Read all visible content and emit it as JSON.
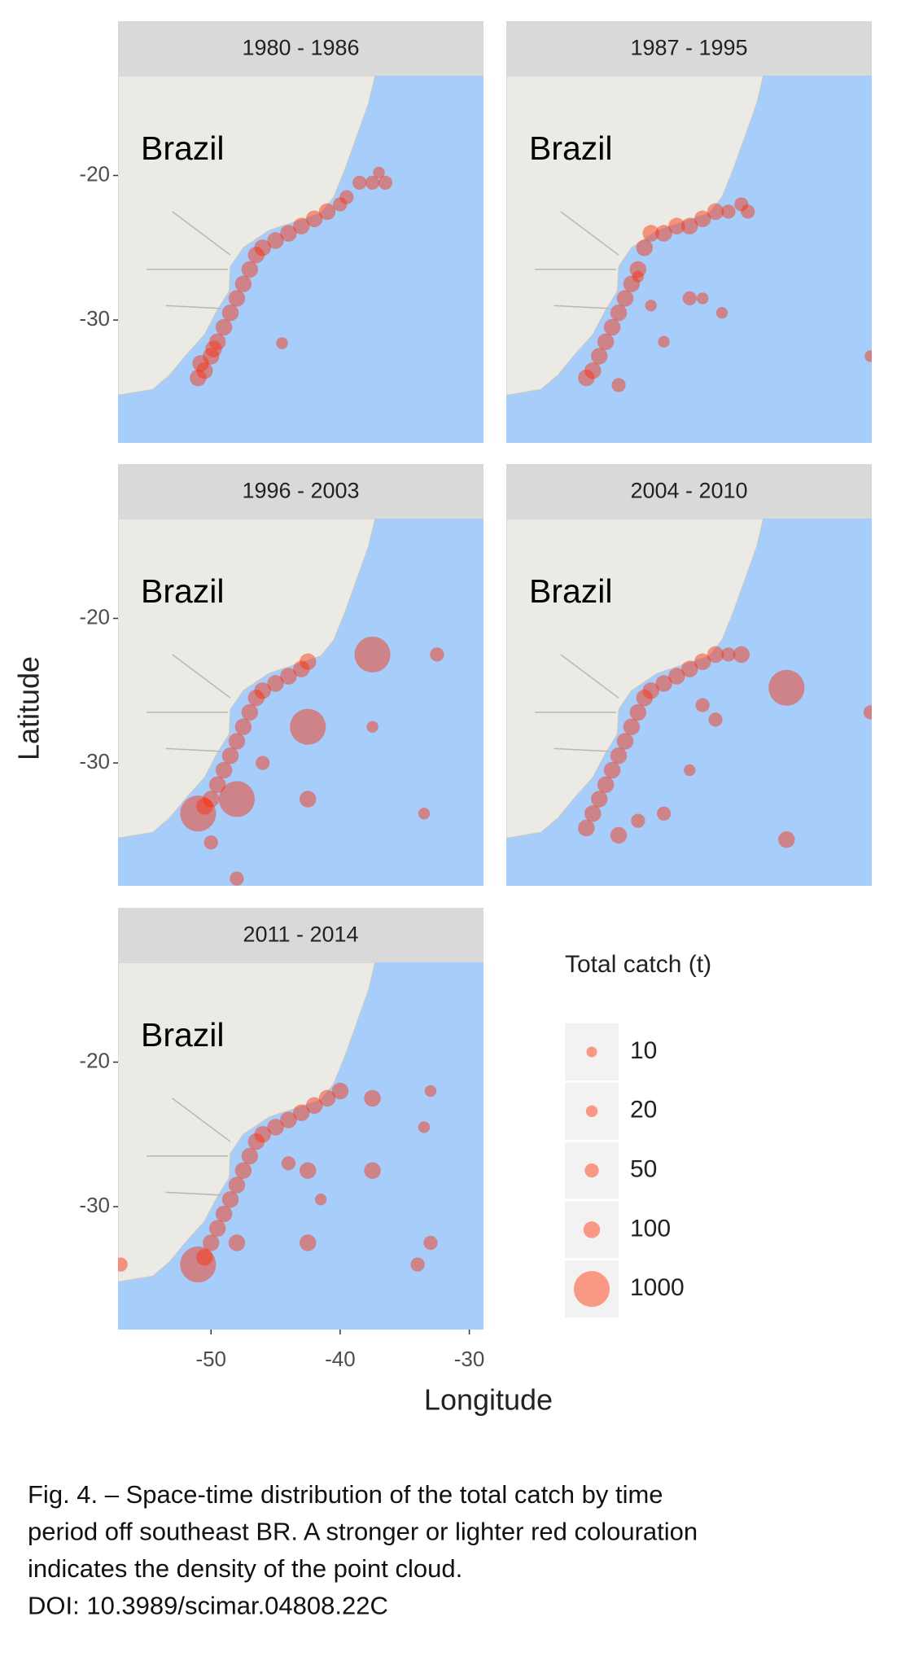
{
  "figure": {
    "xlabel": "Longitude",
    "ylabel": "Latitude",
    "xlim": [
      -57.2,
      -28.9
    ],
    "ylim": [
      -38.5,
      -13.1
    ],
    "xticks": [
      -50,
      -40,
      -30
    ],
    "yticks": [
      -20,
      -30
    ],
    "color": "#ff2a00",
    "legend": {
      "title": "Total catch (t)",
      "values": [
        10,
        20,
        50,
        100,
        1000
      ]
    }
  },
  "chart_data": [
    {
      "type": "scatter",
      "title": "1980 - 1986",
      "annotation": "Brazil",
      "x": [
        -51,
        -50.5,
        -50,
        -49.5,
        -49,
        -48.5,
        -48,
        -47.5,
        -47,
        -46.5,
        -46,
        -45,
        -44,
        -43,
        -42,
        -41,
        -40,
        -39.5,
        -38.5,
        -37.5,
        -37,
        -36.5,
        -44.5,
        -50.8,
        -49.8
      ],
      "y": [
        -34,
        -33.5,
        -32.5,
        -31.5,
        -30.5,
        -29.5,
        -28.5,
        -27.5,
        -26.5,
        -25.5,
        -25,
        -24.5,
        -24,
        -23.5,
        -23,
        -22.5,
        -22,
        -21.5,
        -20.5,
        -20.5,
        -19.8,
        -20.5,
        -31.6,
        -33,
        -32
      ],
      "sizes": [
        100,
        100,
        100,
        100,
        100,
        100,
        100,
        100,
        100,
        100,
        100,
        100,
        100,
        100,
        100,
        100,
        50,
        50,
        50,
        50,
        20,
        50,
        20,
        100,
        100
      ]
    },
    {
      "type": "scatter",
      "title": "1987 - 1995",
      "annotation": "Brazil",
      "x": [
        -51,
        -50.5,
        -50,
        -49.5,
        -49,
        -48.5,
        -48,
        -47.5,
        -47,
        -46.5,
        -46,
        -45,
        -44,
        -43,
        -42,
        -41,
        -40,
        -39,
        -38.5,
        -43,
        -42,
        -40.5,
        -29,
        -45,
        -47,
        -46,
        -48.5
      ],
      "y": [
        -34,
        -33.5,
        -32.5,
        -31.5,
        -30.5,
        -29.5,
        -28.5,
        -27.5,
        -26.5,
        -25,
        -24,
        -24,
        -23.5,
        -23.5,
        -23,
        -22.5,
        -22.5,
        -22,
        -22.5,
        -28.5,
        -28.5,
        -29.5,
        -32.5,
        -31.5,
        -27,
        -29,
        -34.5
      ],
      "sizes": [
        100,
        100,
        100,
        100,
        100,
        100,
        100,
        100,
        100,
        100,
        100,
        100,
        100,
        100,
        100,
        100,
        50,
        50,
        50,
        50,
        20,
        20,
        20,
        20,
        20,
        20,
        50
      ]
    },
    {
      "type": "scatter",
      "title": "1996 - 2003",
      "annotation": "Brazil",
      "x": [
        -51,
        -50.5,
        -50,
        -49.5,
        -49,
        -48.5,
        -48,
        -47.5,
        -47,
        -46.5,
        -46,
        -45,
        -44,
        -43,
        -42.5,
        -37.5,
        -42.5,
        -48,
        -42.5,
        -37.5,
        -33.5,
        -32.5,
        -50,
        -48,
        -46
      ],
      "y": [
        -33.5,
        -33,
        -32.5,
        -31.5,
        -30.5,
        -29.5,
        -28.5,
        -27.5,
        -26.5,
        -25.5,
        -25,
        -24.5,
        -24,
        -23.5,
        -23,
        -22.5,
        -27.5,
        -32.5,
        -32.5,
        -27.5,
        -33.5,
        -22.5,
        -35.5,
        -38,
        -30
      ],
      "sizes": [
        1000,
        100,
        100,
        100,
        100,
        100,
        100,
        100,
        100,
        100,
        100,
        100,
        100,
        100,
        100,
        1000,
        1000,
        1000,
        100,
        20,
        20,
        50,
        50,
        50,
        50
      ]
    },
    {
      "type": "scatter",
      "title": "2004 - 2010",
      "annotation": "Brazil",
      "x": [
        -51,
        -50.5,
        -50,
        -49.5,
        -49,
        -48.5,
        -48,
        -47.5,
        -47,
        -46.5,
        -46,
        -45,
        -44,
        -43,
        -42,
        -41,
        -40,
        -39,
        -35.5,
        -29,
        -35.5,
        -47,
        -45,
        -43,
        -41,
        -48.5,
        -42
      ],
      "y": [
        -34.5,
        -33.5,
        -32.5,
        -31.5,
        -30.5,
        -29.5,
        -28.5,
        -27.5,
        -26.5,
        -25.5,
        -25,
        -24.5,
        -24,
        -23.5,
        -23,
        -22.5,
        -22.5,
        -22.5,
        -24.8,
        -26.5,
        -35.3,
        -34,
        -33.5,
        -30.5,
        -27,
        -35,
        -26
      ],
      "sizes": [
        100,
        100,
        100,
        100,
        100,
        100,
        100,
        100,
        100,
        100,
        100,
        100,
        100,
        100,
        100,
        100,
        50,
        100,
        1000,
        50,
        100,
        50,
        50,
        20,
        50,
        100,
        50
      ]
    },
    {
      "type": "scatter",
      "title": "2011 - 2014",
      "annotation": "Brazil",
      "x": [
        -51,
        -50.5,
        -50,
        -49.5,
        -49,
        -48.5,
        -48,
        -47.5,
        -47,
        -46.5,
        -46,
        -45,
        -44,
        -43,
        -42,
        -41,
        -40,
        -37.5,
        -37.5,
        -42.5,
        -42.5,
        -34,
        -33,
        -33,
        -33.5,
        -57,
        -48,
        -44,
        -41.5
      ],
      "y": [
        -34,
        -33.5,
        -32.5,
        -31.5,
        -30.5,
        -29.5,
        -28.5,
        -27.5,
        -26.5,
        -25.5,
        -25,
        -24.5,
        -24,
        -23.5,
        -23,
        -22.5,
        -22,
        -22.5,
        -27.5,
        -27.5,
        -32.5,
        -34,
        -32.5,
        -22,
        -24.5,
        -34,
        -32.5,
        -27,
        -29.5
      ],
      "sizes": [
        1000,
        100,
        100,
        100,
        100,
        100,
        100,
        100,
        100,
        100,
        100,
        100,
        100,
        100,
        100,
        100,
        100,
        100,
        100,
        100,
        100,
        50,
        50,
        20,
        20,
        50,
        100,
        50,
        20
      ]
    }
  ],
  "caption": [
    "Fig. 4. – Space-time distribution of the total catch by time",
    "period off southeast BR. A stronger or lighter red colouration",
    "indicates the density of the point cloud.",
    "DOI: 10.3989/scimar.04808.22C"
  ]
}
